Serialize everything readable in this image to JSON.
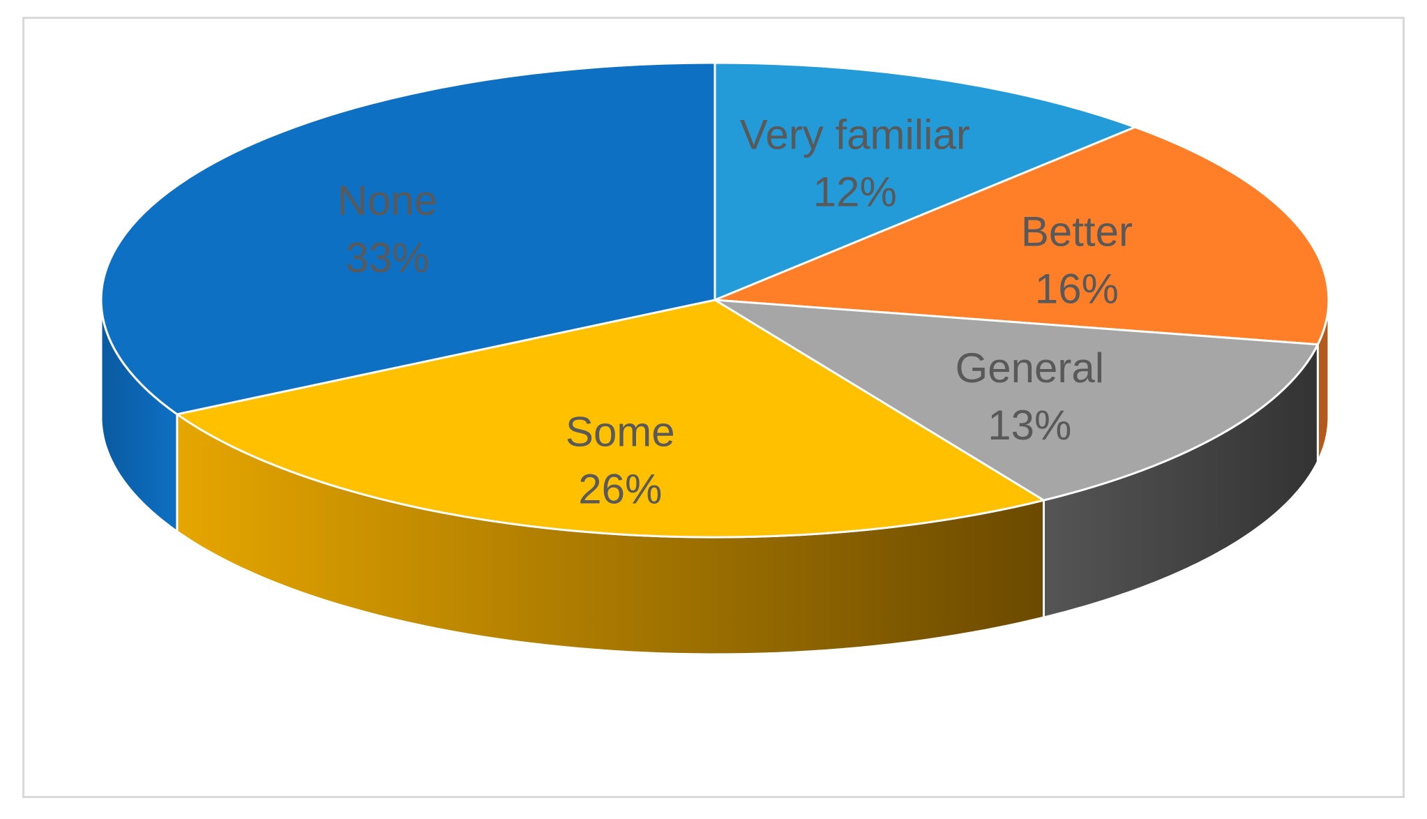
{
  "chart_data": {
    "type": "pie",
    "style": "3d",
    "legend": "none",
    "slices": [
      {
        "label": "Very familiar",
        "value": 12,
        "value_label": "12%",
        "color": "#229bd8",
        "side_color": "#17739f"
      },
      {
        "label": "Better",
        "value": 16,
        "value_label": "16%",
        "color": "#fe7f27",
        "side_color": "#b35a1c"
      },
      {
        "label": "General",
        "value": 13,
        "value_label": "13%",
        "color": "#a6a6a6",
        "side_color": "#3f3f3f"
      },
      {
        "label": "Some",
        "value": 26,
        "value_label": "26%",
        "color": "#ffc000",
        "side_color": "#c99400"
      },
      {
        "label": "None",
        "value": 33,
        "value_label": "33%",
        "color": "#0e70c3",
        "side_color": "#0a5aa0"
      }
    ]
  }
}
